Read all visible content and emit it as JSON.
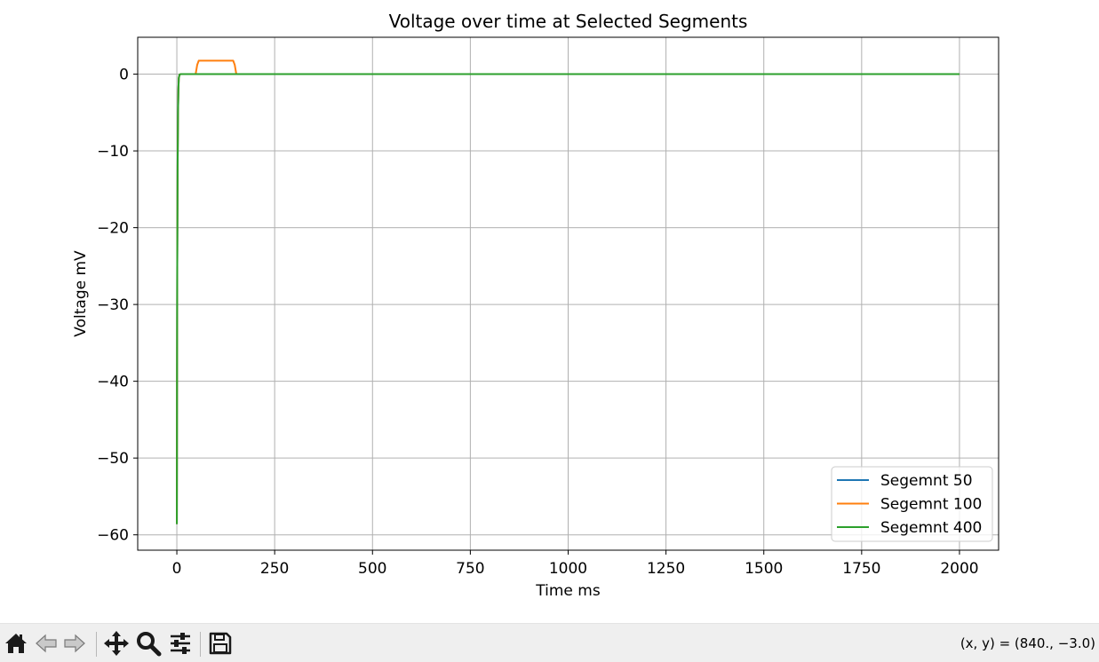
{
  "chart_data": {
    "type": "line",
    "title": "Voltage over time at Selected Segments",
    "xlabel": "Time ms",
    "ylabel": "Voltage mV",
    "xlim": [
      -100,
      2100
    ],
    "ylim": [
      -62,
      4.8
    ],
    "xticks": [
      0,
      250,
      500,
      750,
      1000,
      1250,
      1500,
      1750,
      2000
    ],
    "xtick_labels": [
      "0",
      "250",
      "500",
      "750",
      "1000",
      "1250",
      "1500",
      "1750",
      "2000"
    ],
    "yticks": [
      0,
      -10,
      -20,
      -30,
      -40,
      -50,
      -60
    ],
    "ytick_labels": [
      "0",
      "−10",
      "−20",
      "−30",
      "−40",
      "−50",
      "−60"
    ],
    "grid": true,
    "legend_position": "lower-right",
    "series": [
      {
        "name": "Segemnt 50",
        "color": "#1f77b4",
        "x": [
          0,
          0.5,
          1,
          2,
          3,
          4,
          5,
          7,
          10,
          2000
        ],
        "y": [
          -58.6,
          -40,
          -25,
          -12,
          -5,
          -2,
          -0.5,
          -0.05,
          0,
          0
        ]
      },
      {
        "name": "Segemnt 100",
        "color": "#ff7f0e",
        "x": [
          0,
          0.5,
          1,
          2,
          3,
          4,
          5,
          7,
          10,
          48,
          52,
          56,
          144,
          148,
          152,
          2000
        ],
        "y": [
          -58.6,
          -40,
          -25,
          -12,
          -5,
          -2,
          -0.5,
          -0.05,
          0,
          0,
          1.2,
          1.75,
          1.75,
          1.2,
          0,
          0
        ]
      },
      {
        "name": "Segemnt 400",
        "color": "#2ca02c",
        "x": [
          0,
          0.5,
          1,
          2,
          3,
          4,
          5,
          7,
          10,
          2000
        ],
        "y": [
          -58.6,
          -40,
          -25,
          -12,
          -5,
          -2,
          -0.5,
          -0.05,
          0,
          0
        ]
      }
    ]
  },
  "toolbar": {
    "home_icon": "home-icon",
    "back_icon": "back-arrow-icon",
    "forward_icon": "forward-arrow-icon",
    "pan_icon": "pan-move-icon",
    "zoom_icon": "zoom-magnifier-icon",
    "configure_icon": "configure-subplots-icon",
    "save_icon": "save-floppy-icon",
    "coords_text": "(x, y) = (840., −3.0)"
  }
}
